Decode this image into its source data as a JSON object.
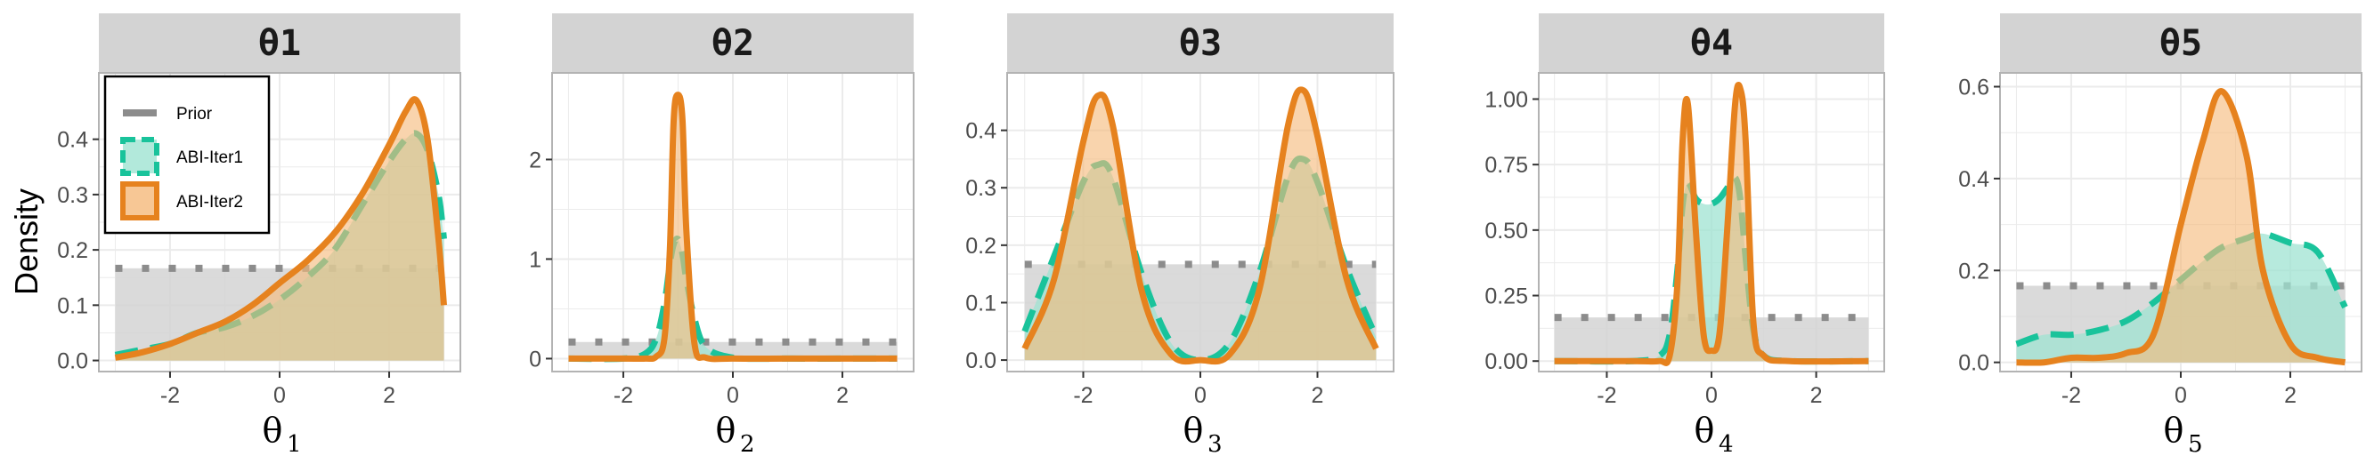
{
  "ylabel": "Density",
  "colors": {
    "prior_line": "#8c8c8c",
    "prior_fill": "#d4d4d4",
    "iter1_line": "#19c39b",
    "iter1_fill": "#9fe3d2",
    "iter2_line": "#e6821e",
    "iter2_fill": "#f5b97a",
    "strip_bg": "#d3d3d3",
    "grid": "#ebebeb"
  },
  "legend": {
    "items": [
      {
        "label": "Prior",
        "key": "prior"
      },
      {
        "label": "ABI-Iter1",
        "key": "iter1"
      },
      {
        "label": "ABI-Iter2",
        "key": "iter2"
      }
    ]
  },
  "chart_data": [
    {
      "type": "area",
      "strip": "θ1",
      "xlabel_base": "θ",
      "xlabel_sub": "1",
      "xlim": [
        -3.3,
        3.3
      ],
      "ylim": [
        -0.02,
        0.52
      ],
      "xticks": [
        -2,
        0,
        2
      ],
      "xtick_labels": [
        "-2",
        "0",
        "2"
      ],
      "yticks": [
        0,
        0.1,
        0.2,
        0.3,
        0.4
      ],
      "ytick_labels": [
        "0.0",
        "0.1",
        "0.2",
        "0.3",
        "0.4"
      ],
      "prior": 0.1667,
      "x": [
        -3,
        -2.5,
        -2,
        -1.5,
        -1,
        -0.5,
        0,
        0.5,
        1,
        1.5,
        2,
        2.3,
        2.5,
        2.7,
        2.9,
        3
      ],
      "series": [
        {
          "name": "ABI-Iter1",
          "values": [
            0.01,
            0.02,
            0.03,
            0.05,
            0.06,
            0.08,
            0.11,
            0.15,
            0.2,
            0.28,
            0.36,
            0.4,
            0.41,
            0.38,
            0.3,
            0.22
          ]
        },
        {
          "name": "ABI-Iter2",
          "values": [
            0.005,
            0.015,
            0.03,
            0.05,
            0.07,
            0.1,
            0.14,
            0.18,
            0.23,
            0.3,
            0.39,
            0.45,
            0.47,
            0.4,
            0.22,
            0.1
          ]
        }
      ]
    },
    {
      "type": "area",
      "strip": "θ2",
      "xlabel_base": "θ",
      "xlabel_sub": "2",
      "xlim": [
        -3.3,
        3.3
      ],
      "ylim": [
        -0.13,
        2.87
      ],
      "xticks": [
        -2,
        0,
        2
      ],
      "xtick_labels": [
        "-2",
        "0",
        "2"
      ],
      "yticks": [
        0,
        1,
        2
      ],
      "ytick_labels": [
        "0",
        "1",
        "2"
      ],
      "prior": 0.1667,
      "x": [
        -3,
        -2,
        -1.6,
        -1.4,
        -1.25,
        -1.15,
        -1.08,
        -1.0,
        -0.92,
        -0.85,
        -0.7,
        -0.5,
        0,
        1,
        2,
        3
      ],
      "series": [
        {
          "name": "ABI-Iter1",
          "values": [
            0,
            0,
            0.05,
            0.2,
            0.55,
            0.95,
            1.15,
            1.2,
            1.05,
            0.8,
            0.4,
            0.12,
            0.01,
            0,
            0,
            0
          ]
        },
        {
          "name": "ABI-Iter2",
          "values": [
            0,
            0,
            0,
            0.02,
            0.2,
            1.1,
            2.4,
            2.65,
            2.4,
            1.3,
            0.15,
            0.01,
            0,
            0,
            0,
            0
          ]
        }
      ]
    },
    {
      "type": "area",
      "strip": "θ3",
      "xlabel_base": "θ",
      "xlabel_sub": "3",
      "xlim": [
        -3.3,
        3.3
      ],
      "ylim": [
        -0.02,
        0.5
      ],
      "xticks": [
        -2,
        0,
        2
      ],
      "xtick_labels": [
        "-2",
        "0",
        "2"
      ],
      "yticks": [
        0,
        0.1,
        0.2,
        0.3,
        0.4
      ],
      "ytick_labels": [
        "0.0",
        "0.1",
        "0.2",
        "0.3",
        "0.4"
      ],
      "prior": 0.1667,
      "x": [
        -3,
        -2.5,
        -2,
        -1.75,
        -1.5,
        -1,
        -0.5,
        0,
        0.5,
        1,
        1.5,
        1.75,
        2,
        2.5,
        3
      ],
      "series": [
        {
          "name": "ABI-Iter1",
          "values": [
            0.05,
            0.18,
            0.31,
            0.34,
            0.32,
            0.15,
            0.03,
            0.0,
            0.03,
            0.15,
            0.32,
            0.35,
            0.31,
            0.16,
            0.04
          ]
        },
        {
          "name": "ABI-Iter2",
          "values": [
            0.02,
            0.14,
            0.38,
            0.46,
            0.41,
            0.12,
            0.01,
            0.0,
            0.01,
            0.12,
            0.41,
            0.47,
            0.39,
            0.14,
            0.02
          ]
        }
      ]
    },
    {
      "type": "area",
      "strip": "θ4",
      "xlabel_base": "θ",
      "xlabel_sub": "4",
      "xlim": [
        -3.3,
        3.3
      ],
      "ylim": [
        -0.04,
        1.1
      ],
      "xticks": [
        -2,
        0,
        2
      ],
      "xtick_labels": [
        "-2",
        "0",
        "2"
      ],
      "yticks": [
        0,
        0.25,
        0.5,
        0.75,
        1.0
      ],
      "ytick_labels": [
        "0.00",
        "0.25",
        "0.50",
        "0.75",
        "1.00"
      ],
      "prior": 0.1667,
      "x": [
        -3,
        -1.5,
        -1.0,
        -0.8,
        -0.65,
        -0.55,
        -0.45,
        -0.3,
        -0.15,
        0,
        0.15,
        0.3,
        0.45,
        0.55,
        0.65,
        0.8,
        1.0,
        1.5,
        3
      ],
      "series": [
        {
          "name": "ABI-Iter1",
          "values": [
            0,
            0,
            0.02,
            0.1,
            0.35,
            0.6,
            0.68,
            0.62,
            0.6,
            0.6,
            0.62,
            0.66,
            0.7,
            0.62,
            0.4,
            0.12,
            0.02,
            0,
            0
          ]
        },
        {
          "name": "ABI-Iter2",
          "values": [
            0,
            0,
            0,
            0.02,
            0.3,
            0.85,
            0.98,
            0.5,
            0.1,
            0.04,
            0.1,
            0.5,
            0.98,
            1.04,
            0.85,
            0.15,
            0.02,
            0,
            0
          ]
        }
      ]
    },
    {
      "type": "area",
      "strip": "θ5",
      "xlabel_base": "θ",
      "xlabel_sub": "5",
      "xlim": [
        -3.3,
        3.3
      ],
      "ylim": [
        -0.02,
        0.63
      ],
      "xticks": [
        -2,
        0,
        2
      ],
      "xtick_labels": [
        "-2",
        "0",
        "2"
      ],
      "yticks": [
        0,
        0.2,
        0.4,
        0.6
      ],
      "ytick_labels": [
        "0.0",
        "0.2",
        "0.4",
        "0.6"
      ],
      "prior": 0.1667,
      "x": [
        -3,
        -2.5,
        -2,
        -1.5,
        -1,
        -0.5,
        0,
        0.4,
        0.75,
        1.2,
        1.5,
        2,
        2.5,
        3
      ],
      "series": [
        {
          "name": "ABI-Iter1",
          "values": [
            0.04,
            0.06,
            0.06,
            0.07,
            0.09,
            0.13,
            0.18,
            0.22,
            0.25,
            0.27,
            0.28,
            0.26,
            0.24,
            0.12
          ]
        },
        {
          "name": "ABI-Iter2",
          "values": [
            0,
            0,
            0.01,
            0.01,
            0.02,
            0.06,
            0.3,
            0.48,
            0.59,
            0.45,
            0.2,
            0.04,
            0.01,
            0
          ]
        }
      ]
    }
  ]
}
